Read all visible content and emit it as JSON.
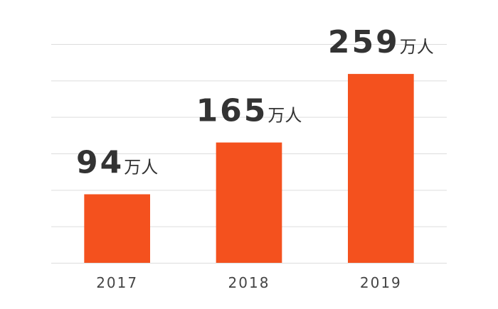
{
  "chart_data": {
    "type": "bar",
    "categories": [
      "2017",
      "2018",
      "2019"
    ],
    "values": [
      94,
      165,
      259
    ],
    "value_unit": "万人",
    "color": "#f4511e",
    "ylim": [
      0,
      300
    ],
    "yticks": [
      0,
      50,
      100,
      150,
      200,
      250,
      300
    ],
    "grid": true
  }
}
